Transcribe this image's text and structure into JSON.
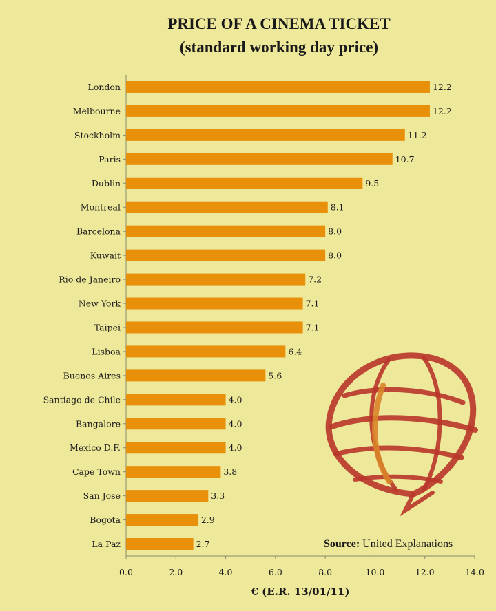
{
  "title_line1": "PRICE OF A CINEMA TICKET",
  "title_line2": "(standard working day price)",
  "source_label": "Source:",
  "source_value": "United Explanations",
  "logo_icon": "globe-speech-bubble-icon",
  "colors": {
    "bar": "#e8900a",
    "background": "#eee89a",
    "logo_red": "#b8352a",
    "logo_orange": "#d9842a"
  },
  "chart_data": {
    "type": "bar",
    "orientation": "horizontal",
    "categories": [
      "London",
      "Melbourne",
      "Stockholm",
      "Paris",
      "Dublin",
      "Montreal",
      "Barcelona",
      "Kuwait",
      "Rio de Janeiro",
      "New York",
      "Taipei",
      "Lisboa",
      "Buenos Aires",
      "Santiago de Chile",
      "Bangalore",
      "Mexico D.F.",
      "Cape Town",
      "San Jose",
      "Bogota",
      "La Paz"
    ],
    "values": [
      12.2,
      12.2,
      11.2,
      10.7,
      9.5,
      8.1,
      8.0,
      8.0,
      7.2,
      7.1,
      7.1,
      6.4,
      5.6,
      4.0,
      4.0,
      4.0,
      3.8,
      3.3,
      2.9,
      2.7
    ],
    "value_labels": [
      "12.2",
      "12.2",
      "11.2",
      "10.7",
      "9.5",
      "8.1",
      "8.0",
      "8.0",
      "7.2",
      "7.1",
      "7.1",
      "6.4",
      "5.6",
      "4.0",
      "4.0",
      "4.0",
      "3.8",
      "3.3",
      "2.9",
      "2.7"
    ],
    "title": "PRICE OF A CINEMA TICKET (standard working day price)",
    "xlabel": "€ (E.R. 13/01/11)",
    "ylabel": "",
    "xlim": [
      0,
      14
    ],
    "x_ticks": [
      "0.0",
      "2.0",
      "4.0",
      "6.0",
      "8.0",
      "10.0",
      "12.0",
      "14.0"
    ],
    "grid": false,
    "legend": "none"
  }
}
